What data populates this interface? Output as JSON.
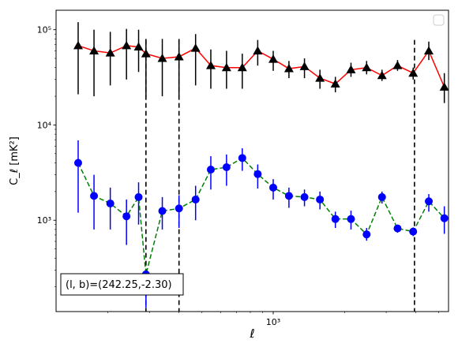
{
  "chart_data": {
    "type": "scatter",
    "xlabel": "ℓ",
    "ylabel": "C_ℓ [mK²]",
    "x_scale": "log",
    "y_scale": "log",
    "xlim": [
      121,
      5500
    ],
    "ylim": [
      110,
      160000
    ],
    "x_ticks": [
      {
        "value": 1000,
        "label": "10³"
      }
    ],
    "y_ticks": [
      {
        "value": 1000,
        "label": "10³"
      },
      {
        "value": 10000,
        "label": "10⁴"
      },
      {
        "value": 100000,
        "label": "10⁵"
      }
    ],
    "annotation": "(l, b)=(242.25,-2.30)",
    "legend": {
      "placement": "top-right",
      "entries": []
    },
    "vertical_lines": [
      {
        "x": 290
      },
      {
        "x": 400
      },
      {
        "x": 3950
      }
    ],
    "series": [
      {
        "marker": "triangle",
        "marker_color": "#000000",
        "line_color": "#ff0000",
        "line_style": "solid",
        "error_color": "#000000",
        "x": [
          150,
          175,
          205,
          240,
          270,
          290,
          340,
          400,
          470,
          545,
          635,
          740,
          860,
          1000,
          1165,
          1355,
          1575,
          1830,
          2130,
          2480,
          2880,
          3350,
          3900,
          4540,
          5280
        ],
        "y": [
          68000,
          60000,
          57000,
          68000,
          66000,
          56000,
          50000,
          52000,
          64000,
          42000,
          40000,
          40000,
          60000,
          49000,
          39000,
          41000,
          31000,
          27000,
          38000,
          40000,
          33000,
          42000,
          35000,
          60000,
          25000
        ],
        "yerr_low": [
          47000,
          40000,
          31000,
          38000,
          30000,
          36000,
          30000,
          32000,
          38000,
          18000,
          16000,
          16000,
          18000,
          12000,
          8000,
          10000,
          7000,
          5000,
          6000,
          6000,
          4000,
          5000,
          5000,
          12000,
          8000
        ],
        "yerr_high": [
          52000,
          40000,
          38000,
          34000,
          34000,
          24000,
          30000,
          28000,
          26000,
          20000,
          20000,
          16000,
          18000,
          11000,
          8000,
          9000,
          7000,
          5000,
          7000,
          7000,
          5000,
          6000,
          5000,
          15000,
          10000
        ]
      },
      {
        "marker": "circle",
        "marker_color": "#0000ff",
        "line_color": "#008000",
        "line_style": "dashed",
        "error_color": "#0000ff",
        "x": [
          150,
          175,
          205,
          240,
          270,
          290,
          340,
          400,
          470,
          545,
          635,
          740,
          860,
          1000,
          1165,
          1355,
          1575,
          1830,
          2130,
          2480,
          2880,
          3350,
          3900,
          4540,
          5280
        ],
        "y": [
          4000,
          1800,
          1500,
          1100,
          1750,
          270,
          1250,
          1330,
          1650,
          3400,
          3600,
          4500,
          3050,
          2200,
          1800,
          1750,
          1650,
          1030,
          1030,
          710,
          1750,
          820,
          760,
          1580,
          1050
        ],
        "yerr_low": [
          2800,
          1000,
          700,
          550,
          850,
          150,
          450,
          500,
          650,
          1300,
          1300,
          1200,
          900,
          550,
          450,
          350,
          350,
          200,
          230,
          100,
          250,
          80,
          80,
          350,
          330
        ],
        "yerr_high": [
          2900,
          1200,
          700,
          550,
          750,
          0,
          500,
          500,
          650,
          1300,
          1300,
          1200,
          800,
          500,
          400,
          350,
          350,
          200,
          230,
          120,
          250,
          80,
          80,
          300,
          350
        ]
      }
    ]
  }
}
